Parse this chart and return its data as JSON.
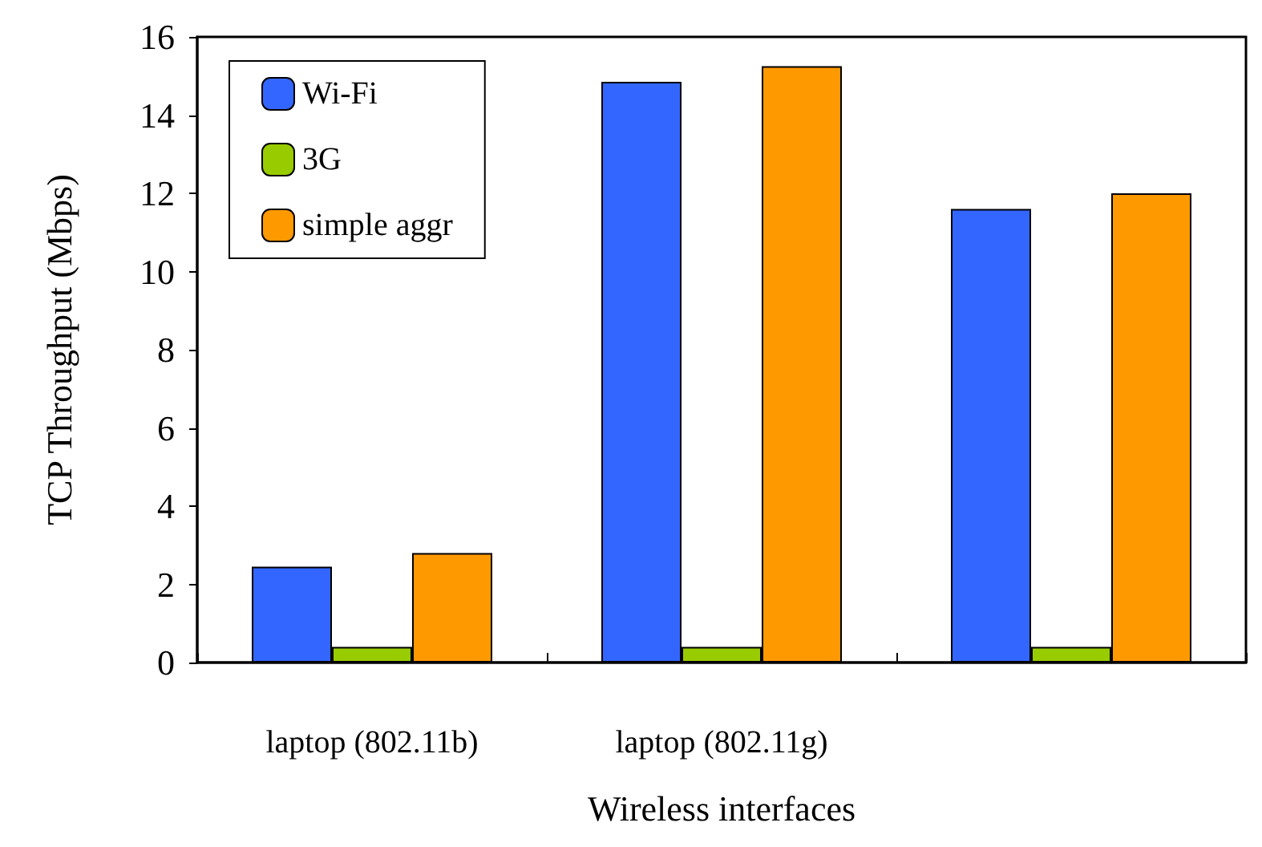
{
  "chart_data": {
    "type": "bar",
    "xlabel": "Wireless interfaces",
    "ylabel": "TCP Throughput (Mbps)",
    "categories": [
      "laptop (802.11b)",
      "laptop (802.11g)",
      null
    ],
    "series": [
      {
        "name": "Wi-Fi",
        "color": "#3366ff",
        "values": [
          2.45,
          14.85,
          11.6
        ]
      },
      {
        "name": "3G",
        "color": "#99cc00",
        "values": [
          0.4,
          0.4,
          0.4
        ]
      },
      {
        "name": "simple aggr",
        "color": "#ff9900",
        "values": [
          2.8,
          15.25,
          12.0
        ]
      }
    ],
    "ylim": [
      0,
      16
    ],
    "yticks": [
      0,
      2,
      4,
      6,
      8,
      10,
      12,
      14,
      16
    ],
    "grid": false,
    "legend": "top left"
  }
}
